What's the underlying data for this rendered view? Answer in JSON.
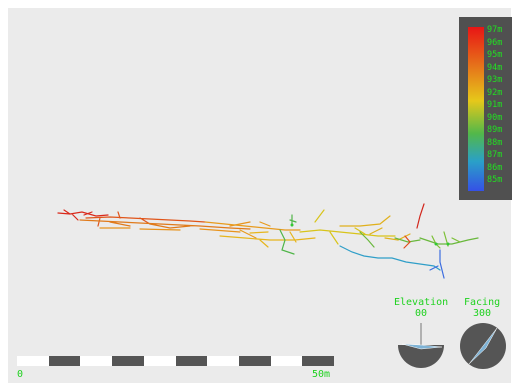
{
  "legend": {
    "ticks": [
      "97m",
      "96m",
      "95m",
      "94m",
      "93m",
      "92m",
      "91m",
      "90m",
      "89m",
      "88m",
      "87m",
      "86m",
      "85m"
    ],
    "colors": {
      "top": "#e81515",
      "upper": "#e6781a",
      "middle": "#e6c81a",
      "lower": "#52b84a",
      "low": "#2aa0c8",
      "bottom": "#3550e6"
    }
  },
  "scale": {
    "start_label": "0",
    "end_label": "50m"
  },
  "elevation": {
    "label": "Elevation",
    "value": "00"
  },
  "facing": {
    "label": "Facing",
    "value": "300"
  },
  "colors": {
    "hud_text": "#1fd21f",
    "background": "#ebebeb",
    "legend_bg": "#505050",
    "dial": "#555555",
    "needle": "#7fb3d5"
  }
}
